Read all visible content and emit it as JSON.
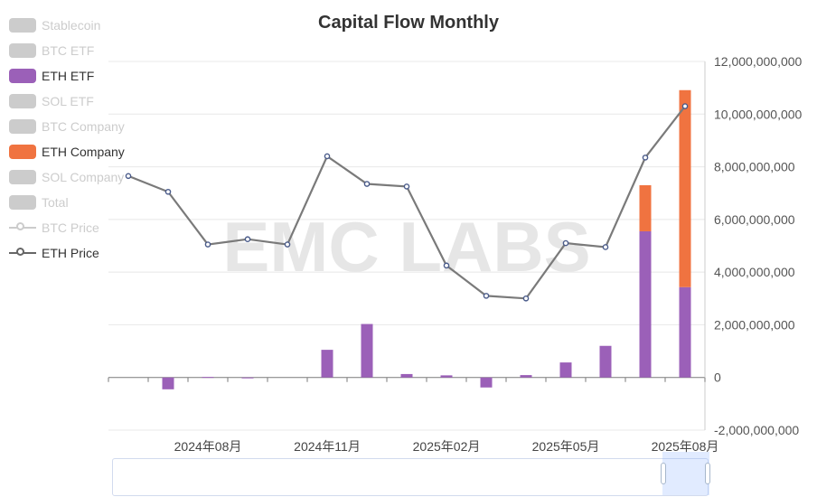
{
  "chart_data": {
    "type": "bar",
    "title": "Capital Flow Monthly",
    "watermark": "EMC LABS",
    "x": [
      "2024-06",
      "2024-07",
      "2024-08",
      "2024-09",
      "2024-10",
      "2024-11",
      "2024-12",
      "2025-01",
      "2025-02",
      "2025-03",
      "2025-04",
      "2025-05",
      "2025-06",
      "2025-07",
      "2025-08"
    ],
    "x_tick_labels": [
      "2024年08月",
      "2024年11月",
      "2025年02月",
      "2025年05月",
      "2025年08月"
    ],
    "x_tick_values": [
      "2024-08",
      "2024-11",
      "2025-02",
      "2025-05",
      "2025-08"
    ],
    "y_right": {
      "ticks": [
        -2000000000,
        0,
        2000000000,
        4000000000,
        6000000000,
        8000000000,
        10000000000,
        12000000000
      ],
      "tick_labels": [
        "-2,000,000,000",
        "0",
        "2,000,000,000",
        "4,000,000,000",
        "6,000,000,000",
        "8,000,000,000",
        "10,000,000,000",
        "12,000,000,000"
      ],
      "min": -2000000000,
      "max": 12000000000
    },
    "series": [
      {
        "name": "ETH ETF",
        "type": "bar",
        "color": "#9b60b8",
        "stack": "flow",
        "values": [
          0,
          -450000000,
          20000000,
          -10000000,
          0,
          1050000000,
          2030000000,
          130000000,
          80000000,
          -380000000,
          90000000,
          570000000,
          1200000000,
          5550000000,
          3430000000
        ]
      },
      {
        "name": "ETH Company",
        "type": "bar",
        "color": "#f07340",
        "stack": "flow",
        "values": [
          0,
          0,
          0,
          0,
          0,
          0,
          0,
          0,
          0,
          0,
          0,
          0,
          0,
          1750000000,
          7480000000
        ]
      },
      {
        "name": "ETH Price",
        "type": "line",
        "color": "#7a7a7a",
        "values": [
          7650000000,
          7050000000,
          5050000000,
          5250000000,
          5050000000,
          8400000000,
          7350000000,
          7250000000,
          4250000000,
          3100000000,
          3000000000,
          5100000000,
          4950000000,
          8350000000,
          10300000000
        ]
      }
    ]
  },
  "legend": {
    "items": [
      {
        "label": "Stablecoin",
        "color": "#cccccc",
        "active": false,
        "kind": "bar"
      },
      {
        "label": "BTC ETF",
        "color": "#cccccc",
        "active": false,
        "kind": "bar"
      },
      {
        "label": "ETH ETF",
        "color": "#9b60b8",
        "active": true,
        "kind": "bar"
      },
      {
        "label": "SOL ETF",
        "color": "#cccccc",
        "active": false,
        "kind": "bar"
      },
      {
        "label": "BTC Company",
        "color": "#cccccc",
        "active": false,
        "kind": "bar"
      },
      {
        "label": "ETH Company",
        "color": "#f07340",
        "active": true,
        "kind": "bar"
      },
      {
        "label": "SOL Company",
        "color": "#cccccc",
        "active": false,
        "kind": "bar"
      },
      {
        "label": "Total",
        "color": "#cccccc",
        "active": false,
        "kind": "bar"
      },
      {
        "label": "BTC Price",
        "color": "#cccccc",
        "active": false,
        "kind": "line"
      },
      {
        "label": "ETH Price",
        "color": "#666666",
        "active": true,
        "kind": "line"
      }
    ]
  }
}
